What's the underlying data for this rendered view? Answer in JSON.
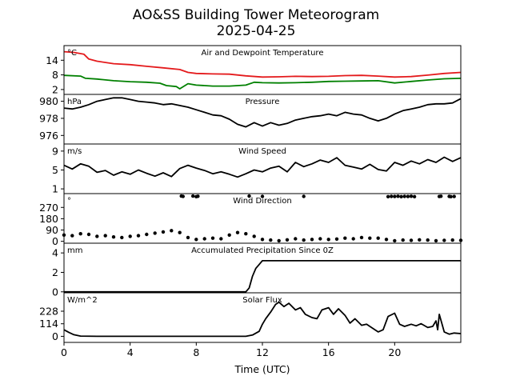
{
  "chart_data": {
    "type": "line",
    "title": "AO&SS Building Tower Meteorogram",
    "subtitle": "2025-04-25",
    "xlabel": "Time (UTC)",
    "xlim": [
      0,
      24
    ],
    "xticks": [
      0,
      4,
      8,
      12,
      16,
      20
    ],
    "grid": false,
    "panels": [
      {
        "title": "Air and Dewpoint Temperature",
        "unit": "°C",
        "ylim": [
          0,
          20
        ],
        "yticks": [
          2,
          8,
          14
        ],
        "series": [
          {
            "color": "#e41a1c",
            "x": [
              0,
              0.6,
              1.2,
              1.5,
              2,
              3,
              4,
              5,
              6,
              7,
              7.5,
              8,
              9,
              10,
              11,
              12,
              13,
              14,
              15,
              16,
              17,
              18,
              19,
              20,
              21,
              22,
              23,
              24
            ],
            "y": [
              17.5,
              17.2,
              16.5,
              14.5,
              13.6,
              12.6,
              12.2,
              11.5,
              10.9,
              10.2,
              9.0,
              8.6,
              8.4,
              8.3,
              7.6,
              7.1,
              7.2,
              7.4,
              7.3,
              7.4,
              7.7,
              7.8,
              7.5,
              7.1,
              7.3,
              7.9,
              8.6,
              9.0
            ]
          },
          {
            "color": "#008000",
            "x": [
              0,
              1,
              1.3,
              2,
              3,
              4,
              5,
              5.8,
              6.2,
              6.8,
              7.0,
              7.5,
              8,
              9,
              10,
              11,
              11.5,
              12,
              13,
              14,
              15,
              16,
              17,
              18,
              19,
              20,
              21,
              22,
              23,
              24
            ],
            "y": [
              7.8,
              7.5,
              6.6,
              6.3,
              5.6,
              5.2,
              5.0,
              4.6,
              3.6,
              3.2,
              2.3,
              4.4,
              3.8,
              3.4,
              3.4,
              3.8,
              5.0,
              4.8,
              4.7,
              4.8,
              5.0,
              5.3,
              5.4,
              5.5,
              5.6,
              4.7,
              5.3,
              5.9,
              6.4,
              6.6
            ]
          }
        ]
      },
      {
        "title": "Pressure",
        "unit": "hPa",
        "ylim": [
          975,
          980.8
        ],
        "yticks": [
          976,
          978,
          980
        ],
        "series": [
          {
            "color": "#000000",
            "x": [
              0,
              0.5,
              1,
              1.5,
              2,
              2.5,
              3,
              3.5,
              4,
              4.5,
              5,
              5.5,
              6,
              6.5,
              7,
              7.5,
              8,
              8.5,
              9,
              9.5,
              10,
              10.5,
              11,
              11.5,
              12,
              12.5,
              13,
              13.5,
              14,
              14.5,
              15,
              15.5,
              16,
              16.5,
              17,
              17.5,
              18,
              18.5,
              19,
              19.5,
              20,
              20.5,
              21,
              21.5,
              22,
              22.5,
              23,
              23.5,
              24
            ],
            "y": [
              979.2,
              979.1,
              979.3,
              979.6,
              980.0,
              980.2,
              980.4,
              980.4,
              980.2,
              980.0,
              979.9,
              979.8,
              979.6,
              979.7,
              979.5,
              979.3,
              979.0,
              978.7,
              978.4,
              978.3,
              977.9,
              977.3,
              977.0,
              977.5,
              977.1,
              977.5,
              977.2,
              977.4,
              977.8,
              978.0,
              978.2,
              978.3,
              978.5,
              978.3,
              978.7,
              978.5,
              978.4,
              978.0,
              977.7,
              978.0,
              978.5,
              978.9,
              979.1,
              979.3,
              979.6,
              979.7,
              979.7,
              979.8,
              980.3
            ]
          }
        ]
      },
      {
        "title": "Wind Speed",
        "unit": "m/s",
        "ylim": [
          0,
          10.5
        ],
        "yticks": [
          1,
          5,
          9
        ],
        "series": [
          {
            "color": "#000000",
            "x": [
              0,
              0.5,
              1,
              1.5,
              2,
              2.5,
              3,
              3.5,
              4,
              4.5,
              5,
              5.5,
              6,
              6.5,
              7,
              7.5,
              8,
              8.5,
              9,
              9.5,
              10,
              10.5,
              11,
              11.5,
              12,
              12.5,
              13,
              13.5,
              14,
              14.5,
              15,
              15.5,
              16,
              16.5,
              17,
              17.5,
              18,
              18.5,
              19,
              19.5,
              20,
              20.5,
              21,
              21.5,
              22,
              22.5,
              23,
              23.5,
              24
            ],
            "y": [
              6.0,
              5.2,
              6.3,
              5.8,
              4.5,
              4.9,
              3.9,
              4.6,
              4.1,
              5.0,
              4.3,
              3.7,
              4.4,
              3.6,
              5.3,
              6.0,
              5.4,
              4.9,
              4.2,
              4.6,
              4.1,
              3.5,
              4.2,
              5.0,
              4.6,
              5.4,
              5.8,
              4.6,
              6.6,
              5.7,
              6.3,
              7.1,
              6.6,
              7.6,
              6.0,
              5.6,
              5.2,
              6.2,
              5.1,
              4.8,
              6.6,
              6.0,
              6.9,
              6.3,
              7.2,
              6.6,
              7.7,
              6.8,
              7.6
            ]
          }
        ]
      },
      {
        "title": "Wind Direction",
        "unit": "°",
        "ylim": [
          -15,
          380
        ],
        "yticks": [
          0,
          90,
          180,
          270
        ],
        "style": "markers",
        "series": [
          {
            "color": "#000000",
            "x": [
              0,
              0.5,
              1,
              1.5,
              2,
              2.5,
              3,
              3.5,
              4,
              4.5,
              5,
              5.5,
              6,
              6.5,
              7,
              7.5,
              8,
              8.5,
              9,
              9.5,
              10,
              10.5,
              11,
              11.5,
              12,
              12.5,
              13,
              13.5,
              14,
              14.5,
              15,
              15.5,
              16,
              16.5,
              17,
              17.5,
              18,
              18.5,
              19,
              19.5,
              20,
              20.5,
              21,
              21.5,
              22,
              22.5,
              23,
              23.5,
              24
            ],
            "y": [
              50,
              45,
              60,
              55,
              40,
              45,
              35,
              30,
              40,
              45,
              55,
              65,
              75,
              85,
              70,
              30,
              15,
              20,
              25,
              20,
              50,
              70,
              60,
              40,
              15,
              10,
              5,
              12,
              20,
              10,
              15,
              20,
              15,
              18,
              25,
              20,
              30,
              25,
              25,
              15,
              5,
              10,
              8,
              12,
              10,
              5,
              8,
              10,
              8
            ]
          },
          {
            "color": "#000000",
            "x": [
              7.1,
              7.2,
              7.8,
              8.0,
              8.1,
              11.2,
              12.0,
              14.5,
              19.6,
              19.8,
              20.0,
              20.2,
              20.4,
              20.6,
              20.8,
              21.0,
              21.2,
              22.7,
              22.8,
              23.3,
              23.4,
              23.6
            ],
            "y": [
              360,
              358,
              360,
              356,
              359,
              360,
              358,
              358,
              356,
              358,
              357,
              359,
              356,
              358,
              357,
              359,
              356,
              357,
              359,
              358,
              356,
              357
            ]
          }
        ]
      },
      {
        "title": "Accumulated Precipitation Since 0Z",
        "unit": "mm",
        "ylim": [
          -0.1,
          5
        ],
        "yticks": [
          0,
          2,
          4
        ],
        "series": [
          {
            "color": "#000000",
            "x": [
              0,
              11.0,
              11.2,
              11.4,
              11.6,
              11.8,
              11.9,
              12.0,
              24
            ],
            "y": [
              0,
              0,
              0.4,
              1.6,
              2.4,
              2.8,
              3.0,
              3.2,
              3.2
            ]
          }
        ]
      },
      {
        "title": "Solar Flux",
        "unit": "W/m^2",
        "ylim": [
          -55,
          395
        ],
        "yticks": [
          0,
          114,
          228
        ],
        "series": [
          {
            "color": "#000000",
            "x": [
              0,
              0.3,
              0.6,
              1.0,
              2,
              4,
              6,
              8,
              10,
              11.0,
              11.4,
              11.8,
              12.0,
              12.2,
              12.5,
              12.8,
              13.0,
              13.3,
              13.6,
              14.0,
              14.3,
              14.6,
              15.0,
              15.3,
              15.6,
              16.0,
              16.3,
              16.6,
              17.0,
              17.3,
              17.6,
              18.0,
              18.3,
              18.6,
              19.0,
              19.3,
              19.6,
              20.0,
              20.3,
              20.6,
              21.0,
              21.3,
              21.6,
              22.0,
              22.3,
              22.5,
              22.6,
              22.7,
              23.0,
              23.3,
              23.6,
              24.0
            ],
            "y": [
              60,
              35,
              15,
              2,
              0,
              0,
              0,
              0,
              0,
              0,
              12,
              45,
              110,
              160,
              220,
              290,
              310,
              270,
              300,
              240,
              260,
              200,
              170,
              160,
              240,
              260,
              200,
              250,
              190,
              120,
              160,
              100,
              110,
              80,
              40,
              60,
              180,
              210,
              110,
              90,
              110,
              95,
              115,
              80,
              90,
              140,
              60,
              200,
              40,
              20,
              30,
              25
            ]
          }
        ]
      }
    ]
  }
}
